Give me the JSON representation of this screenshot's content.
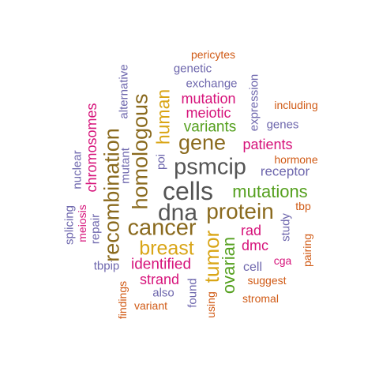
{
  "colors": {
    "gray": "#555555",
    "brown": "#8a6a1e",
    "gold": "#d9a516",
    "green": "#55a01f",
    "magenta": "#d6127a",
    "purple": "#6e67ad",
    "orange": "#d05a15"
  },
  "words": [
    {
      "text": "cells",
      "color": "gray",
      "orientation": "horizontal"
    },
    {
      "text": "dna",
      "color": "gray",
      "orientation": "horizontal"
    },
    {
      "text": "psmcip",
      "color": "gray",
      "orientation": "horizontal"
    },
    {
      "text": "protein",
      "color": "brown",
      "orientation": "horizontal"
    },
    {
      "text": "cancer",
      "color": "brown",
      "orientation": "horizontal"
    },
    {
      "text": "gene",
      "color": "brown",
      "orientation": "horizontal"
    },
    {
      "text": "homologous",
      "color": "brown",
      "orientation": "vertical"
    },
    {
      "text": "recombination",
      "color": "brown",
      "orientation": "vertical"
    },
    {
      "text": "tumor",
      "color": "gold",
      "orientation": "vertical"
    },
    {
      "text": "breast",
      "color": "gold",
      "orientation": "horizontal"
    },
    {
      "text": "human",
      "color": "gold",
      "orientation": "vertical"
    },
    {
      "text": "mutations",
      "color": "green",
      "orientation": "horizontal"
    },
    {
      "text": "variants",
      "color": "green",
      "orientation": "horizontal"
    },
    {
      "text": "ovarian",
      "color": "green",
      "orientation": "vertical"
    },
    {
      "text": "patients",
      "color": "magenta",
      "orientation": "horizontal"
    },
    {
      "text": "mutation",
      "color": "magenta",
      "orientation": "horizontal"
    },
    {
      "text": "meiotic",
      "color": "magenta",
      "orientation": "horizontal"
    },
    {
      "text": "chromosomes",
      "color": "magenta",
      "orientation": "vertical"
    },
    {
      "text": "identified",
      "color": "magenta",
      "orientation": "horizontal"
    },
    {
      "text": "strand",
      "color": "magenta",
      "orientation": "horizontal"
    },
    {
      "text": "rad",
      "color": "magenta",
      "orientation": "horizontal"
    },
    {
      "text": "dmc",
      "color": "magenta",
      "orientation": "horizontal"
    },
    {
      "text": "meiosis",
      "color": "magenta",
      "orientation": "vertical"
    },
    {
      "text": "cga",
      "color": "magenta",
      "orientation": "horizontal"
    },
    {
      "text": "receptor",
      "color": "purple",
      "orientation": "horizontal"
    },
    {
      "text": "exchange",
      "color": "purple",
      "orientation": "horizontal"
    },
    {
      "text": "genetic",
      "color": "purple",
      "orientation": "horizontal"
    },
    {
      "text": "expression",
      "color": "purple",
      "orientation": "vertical"
    },
    {
      "text": "genes",
      "color": "purple",
      "orientation": "horizontal"
    },
    {
      "text": "alternative",
      "color": "purple",
      "orientation": "vertical"
    },
    {
      "text": "mutant",
      "color": "purple",
      "orientation": "vertical"
    },
    {
      "text": "nuclear",
      "color": "purple",
      "orientation": "vertical"
    },
    {
      "text": "poi",
      "color": "purple",
      "orientation": "vertical"
    },
    {
      "text": "splicing",
      "color": "purple",
      "orientation": "vertical"
    },
    {
      "text": "repair",
      "color": "purple",
      "orientation": "vertical"
    },
    {
      "text": "tbpip",
      "color": "purple",
      "orientation": "horizontal"
    },
    {
      "text": "also",
      "color": "purple",
      "orientation": "horizontal"
    },
    {
      "text": "found",
      "color": "purple",
      "orientation": "vertical"
    },
    {
      "text": "cell",
      "color": "purple",
      "orientation": "horizontal"
    },
    {
      "text": "study",
      "color": "purple",
      "orientation": "vertical"
    },
    {
      "text": "pericytes",
      "color": "orange",
      "orientation": "horizontal"
    },
    {
      "text": "including",
      "color": "orange",
      "orientation": "horizontal"
    },
    {
      "text": "hormone",
      "color": "orange",
      "orientation": "horizontal"
    },
    {
      "text": "tbp",
      "color": "orange",
      "orientation": "horizontal"
    },
    {
      "text": "pairing",
      "color": "orange",
      "orientation": "vertical"
    },
    {
      "text": "suggest",
      "color": "orange",
      "orientation": "horizontal"
    },
    {
      "text": "stromal",
      "color": "orange",
      "orientation": "horizontal"
    },
    {
      "text": "variant",
      "color": "orange",
      "orientation": "horizontal"
    },
    {
      "text": "findings",
      "color": "orange",
      "orientation": "vertical"
    },
    {
      "text": "using",
      "color": "orange",
      "orientation": "vertical"
    }
  ]
}
